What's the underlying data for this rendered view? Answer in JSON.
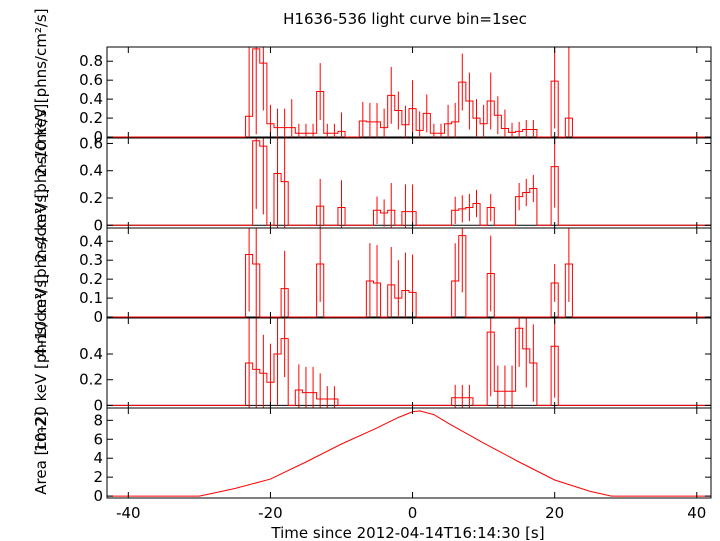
{
  "chart_data": {
    "type": "line",
    "title": "H1636-536 light curve bin=1sec",
    "xlabel": "Time since 2012-04-14T16:14:30 [s]",
    "xlim": [
      -43,
      42
    ],
    "xticks": [
      -40,
      -20,
      0,
      20,
      40
    ],
    "series_color": "#ff0000",
    "panels": [
      {
        "name": "2-10 keV",
        "ylabel": "2–10 keV [phns/cm²/s]",
        "ylim": [
          -0.01,
          0.95
        ],
        "yticks": [
          0,
          0.2,
          0.4,
          0.6,
          0.8
        ],
        "yticklabels": [
          "0",
          "0.2",
          "0.4",
          "0.6",
          "0.8"
        ],
        "bins": [
          {
            "t": -23,
            "v": 0.22,
            "e": 0.9
          },
          {
            "t": -22,
            "v": 0.93,
            "e": 0.9
          },
          {
            "t": -21,
            "v": 0.78,
            "e": 0.5
          },
          {
            "t": -20,
            "v": 0.14,
            "e": 0.2
          },
          {
            "t": -19,
            "v": 0.1,
            "e": 0.2
          },
          {
            "t": -18,
            "v": 0.1,
            "e": 0.2
          },
          {
            "t": -17,
            "v": 0.1,
            "e": 0.3
          },
          {
            "t": -16,
            "v": 0.04,
            "e": 0.1
          },
          {
            "t": -15,
            "v": 0.04,
            "e": 0.1
          },
          {
            "t": -14,
            "v": 0.04,
            "e": 0.1
          },
          {
            "t": -13,
            "v": 0.48,
            "e": 0.3
          },
          {
            "t": -12,
            "v": 0.04,
            "e": 0.1
          },
          {
            "t": -11,
            "v": 0.04,
            "e": 0.1
          },
          {
            "t": -10,
            "v": 0.06,
            "e": 0.2
          },
          {
            "t": -9,
            "v": 0.0,
            "e": 0.0
          },
          {
            "t": -8,
            "v": 0.0,
            "e": 0.0
          },
          {
            "t": -7,
            "v": 0.17,
            "e": 0.2
          },
          {
            "t": -6,
            "v": 0.16,
            "e": 0.2
          },
          {
            "t": -5,
            "v": 0.16,
            "e": 0.2
          },
          {
            "t": -4,
            "v": 0.1,
            "e": 0.2
          },
          {
            "t": -3,
            "v": 0.44,
            "e": 0.3
          },
          {
            "t": -2,
            "v": 0.28,
            "e": 0.2
          },
          {
            "t": -1,
            "v": 0.13,
            "e": 0.2
          },
          {
            "t": 0,
            "v": 0.3,
            "e": 0.3
          },
          {
            "t": 1,
            "v": 0.07,
            "e": 0.2
          },
          {
            "t": 2,
            "v": 0.25,
            "e": 0.2
          },
          {
            "t": 3,
            "v": 0.04,
            "e": 0.1
          },
          {
            "t": 4,
            "v": 0.04,
            "e": 0.1
          },
          {
            "t": 5,
            "v": 0.14,
            "e": 0.2
          },
          {
            "t": 6,
            "v": 0.16,
            "e": 0.2
          },
          {
            "t": 7,
            "v": 0.58,
            "e": 0.3
          },
          {
            "t": 8,
            "v": 0.38,
            "e": 0.3
          },
          {
            "t": 9,
            "v": 0.2,
            "e": 0.2
          },
          {
            "t": 10,
            "v": 0.14,
            "e": 0.2
          },
          {
            "t": 11,
            "v": 0.38,
            "e": 0.3
          },
          {
            "t": 12,
            "v": 0.23,
            "e": 0.2
          },
          {
            "t": 13,
            "v": 0.09,
            "e": 0.2
          },
          {
            "t": 14,
            "v": 0.05,
            "e": 0.1
          },
          {
            "t": 15,
            "v": 0.06,
            "e": 0.1
          },
          {
            "t": 16,
            "v": 0.08,
            "e": 0.1
          },
          {
            "t": 17,
            "v": 0.08,
            "e": 0.1
          },
          {
            "t": 18,
            "v": 0.0,
            "e": 0.0
          },
          {
            "t": 19,
            "v": 0.0,
            "e": 0.0
          },
          {
            "t": 20,
            "v": 0.59,
            "e": 0.5
          },
          {
            "t": 21,
            "v": 0.0,
            "e": 0.0
          },
          {
            "t": 22,
            "v": 0.2,
            "e": 0.9
          }
        ]
      },
      {
        "name": "2-4 keV",
        "ylabel": "2–4 keV [phns/cm²/s]",
        "ylim": [
          -0.02,
          0.64
        ],
        "yticks": [
          0,
          0.2,
          0.4,
          0.6
        ],
        "yticklabels": [
          "0",
          "0.2",
          "0.4",
          "0.6"
        ],
        "bins": [
          {
            "t": -23,
            "v": 0.0,
            "e": 0.0
          },
          {
            "t": -22,
            "v": 0.62,
            "e": 0.5
          },
          {
            "t": -21,
            "v": 0.58,
            "e": 0.5
          },
          {
            "t": -20,
            "v": 0.0,
            "e": 0.0
          },
          {
            "t": -19,
            "v": 0.38,
            "e": 0.4
          },
          {
            "t": -18,
            "v": 0.32,
            "e": 0.4
          },
          {
            "t": -17,
            "v": 0.0,
            "e": 0.0
          },
          {
            "t": -16,
            "v": 0.0,
            "e": 0.0
          },
          {
            "t": -15,
            "v": 0.0,
            "e": 0.0
          },
          {
            "t": -14,
            "v": 0.0,
            "e": 0.0
          },
          {
            "t": -13,
            "v": 0.14,
            "e": 0.2
          },
          {
            "t": -12,
            "v": 0.0,
            "e": 0.0
          },
          {
            "t": -11,
            "v": 0.0,
            "e": 0.0
          },
          {
            "t": -10,
            "v": 0.13,
            "e": 0.2
          },
          {
            "t": -9,
            "v": 0.0,
            "e": 0.0
          },
          {
            "t": -8,
            "v": 0.0,
            "e": 0.0
          },
          {
            "t": -7,
            "v": 0.0,
            "e": 0.0
          },
          {
            "t": -6,
            "v": 0.0,
            "e": 0.0
          },
          {
            "t": -5,
            "v": 0.11,
            "e": 0.1
          },
          {
            "t": -4,
            "v": 0.09,
            "e": 0.1
          },
          {
            "t": -3,
            "v": 0.11,
            "e": 0.2
          },
          {
            "t": -2,
            "v": 0.0,
            "e": 0.0
          },
          {
            "t": -1,
            "v": 0.1,
            "e": 0.2
          },
          {
            "t": 0,
            "v": 0.1,
            "e": 0.2
          },
          {
            "t": 1,
            "v": 0.0,
            "e": 0.0
          },
          {
            "t": 2,
            "v": 0.0,
            "e": 0.0
          },
          {
            "t": 3,
            "v": 0.0,
            "e": 0.0
          },
          {
            "t": 4,
            "v": 0.0,
            "e": 0.0
          },
          {
            "t": 5,
            "v": 0.0,
            "e": 0.0
          },
          {
            "t": 6,
            "v": 0.11,
            "e": 0.1
          },
          {
            "t": 7,
            "v": 0.12,
            "e": 0.1
          },
          {
            "t": 8,
            "v": 0.13,
            "e": 0.1
          },
          {
            "t": 9,
            "v": 0.16,
            "e": 0.1
          },
          {
            "t": 10,
            "v": 0.0,
            "e": 0.0
          },
          {
            "t": 11,
            "v": 0.13,
            "e": 0.1
          },
          {
            "t": 12,
            "v": 0.0,
            "e": 0.0
          },
          {
            "t": 13,
            "v": 0.0,
            "e": 0.0
          },
          {
            "t": 14,
            "v": 0.0,
            "e": 0.0
          },
          {
            "t": 15,
            "v": 0.21,
            "e": 0.1
          },
          {
            "t": 16,
            "v": 0.24,
            "e": 0.1
          },
          {
            "t": 17,
            "v": 0.27,
            "e": 0.1
          },
          {
            "t": 18,
            "v": 0.0,
            "e": 0.0
          },
          {
            "t": 19,
            "v": 0.0,
            "e": 0.0
          },
          {
            "t": 20,
            "v": 0.43,
            "e": 0.3
          },
          {
            "t": 21,
            "v": 0.0,
            "e": 0.0
          },
          {
            "t": 22,
            "v": 0.0,
            "e": 0.0
          }
        ]
      },
      {
        "name": "4-10 keV",
        "ylabel": "4–10 keV [phns/cm²/s]",
        "ylim": [
          -0.005,
          0.47
        ],
        "yticks": [
          0,
          0.1,
          0.2,
          0.3,
          0.4
        ],
        "yticklabels": [
          "0",
          "0.1",
          "0.2",
          "0.3",
          "0.4"
        ],
        "bins": [
          {
            "t": -23,
            "v": 0.33,
            "e": 0.3
          },
          {
            "t": -22,
            "v": 0.28,
            "e": 0.3
          },
          {
            "t": -21,
            "v": 0.0,
            "e": 0.0
          },
          {
            "t": -20,
            "v": 0.0,
            "e": 0.0
          },
          {
            "t": -19,
            "v": 0.0,
            "e": 0.0
          },
          {
            "t": -18,
            "v": 0.15,
            "e": 0.2
          },
          {
            "t": -17,
            "v": 0.0,
            "e": 0.0
          },
          {
            "t": -16,
            "v": 0.0,
            "e": 0.0
          },
          {
            "t": -15,
            "v": 0.0,
            "e": 0.0
          },
          {
            "t": -14,
            "v": 0.0,
            "e": 0.0
          },
          {
            "t": -13,
            "v": 0.28,
            "e": 0.2
          },
          {
            "t": -12,
            "v": 0.0,
            "e": 0.0
          },
          {
            "t": -11,
            "v": 0.0,
            "e": 0.0
          },
          {
            "t": -10,
            "v": 0.0,
            "e": 0.0
          },
          {
            "t": -9,
            "v": 0.0,
            "e": 0.0
          },
          {
            "t": -8,
            "v": 0.0,
            "e": 0.0
          },
          {
            "t": -7,
            "v": 0.0,
            "e": 0.0
          },
          {
            "t": -6,
            "v": 0.19,
            "e": 0.2
          },
          {
            "t": -5,
            "v": 0.18,
            "e": 0.2
          },
          {
            "t": -4,
            "v": 0.0,
            "e": 0.0
          },
          {
            "t": -3,
            "v": 0.17,
            "e": 0.2
          },
          {
            "t": -2,
            "v": 0.1,
            "e": 0.2
          },
          {
            "t": -1,
            "v": 0.14,
            "e": 0.2
          },
          {
            "t": 0,
            "v": 0.13,
            "e": 0.2
          },
          {
            "t": 1,
            "v": 0.0,
            "e": 0.0
          },
          {
            "t": 2,
            "v": 0.0,
            "e": 0.0
          },
          {
            "t": 3,
            "v": 0.0,
            "e": 0.0
          },
          {
            "t": 4,
            "v": 0.0,
            "e": 0.0
          },
          {
            "t": 5,
            "v": 0.0,
            "e": 0.0
          },
          {
            "t": 6,
            "v": 0.19,
            "e": 0.2
          },
          {
            "t": 7,
            "v": 0.43,
            "e": 0.3
          },
          {
            "t": 8,
            "v": 0.0,
            "e": 0.0
          },
          {
            "t": 9,
            "v": 0.0,
            "e": 0.0
          },
          {
            "t": 10,
            "v": 0.0,
            "e": 0.0
          },
          {
            "t": 11,
            "v": 0.23,
            "e": 0.2
          },
          {
            "t": 12,
            "v": 0.0,
            "e": 0.0
          },
          {
            "t": 13,
            "v": 0.0,
            "e": 0.0
          },
          {
            "t": 14,
            "v": 0.0,
            "e": 0.0
          },
          {
            "t": 15,
            "v": 0.0,
            "e": 0.0
          },
          {
            "t": 16,
            "v": 0.0,
            "e": 0.0
          },
          {
            "t": 17,
            "v": 0.0,
            "e": 0.0
          },
          {
            "t": 18,
            "v": 0.0,
            "e": 0.0
          },
          {
            "t": 19,
            "v": 0.0,
            "e": 0.0
          },
          {
            "t": 20,
            "v": 0.18,
            "e": 0.1
          },
          {
            "t": 21,
            "v": 0.0,
            "e": 0.0
          },
          {
            "t": 22,
            "v": 0.28,
            "e": 0.2
          }
        ]
      },
      {
        "name": "10-20 keV",
        "ylabel": "10–20 keV [phns/cm²/s]",
        "ylim": [
          -0.02,
          0.68
        ],
        "yticks": [
          0,
          0.2,
          0.4
        ],
        "yticklabels": [
          "0",
          "0.2",
          "0.4"
        ],
        "bins": [
          {
            "t": -23,
            "v": 0.33,
            "e": 0.4
          },
          {
            "t": -22,
            "v": 0.28,
            "e": 0.4
          },
          {
            "t": -21,
            "v": 0.25,
            "e": 0.3
          },
          {
            "t": -20,
            "v": 0.18,
            "e": 0.3
          },
          {
            "t": -19,
            "v": 0.4,
            "e": 0.4
          },
          {
            "t": -18,
            "v": 0.52,
            "e": 0.3
          },
          {
            "t": -17,
            "v": 0.0,
            "e": 0.0
          },
          {
            "t": -16,
            "v": 0.12,
            "e": 0.2
          },
          {
            "t": -15,
            "v": 0.1,
            "e": 0.2
          },
          {
            "t": -14,
            "v": 0.1,
            "e": 0.2
          },
          {
            "t": -13,
            "v": 0.05,
            "e": 0.2
          },
          {
            "t": -12,
            "v": 0.05,
            "e": 0.1
          },
          {
            "t": -11,
            "v": 0.05,
            "e": 0.1
          },
          {
            "t": -10,
            "v": 0.0,
            "e": 0.0
          },
          {
            "t": -9,
            "v": 0.0,
            "e": 0.0
          },
          {
            "t": -8,
            "v": 0.0,
            "e": 0.0
          },
          {
            "t": -7,
            "v": 0.0,
            "e": 0.0
          },
          {
            "t": -6,
            "v": 0.0,
            "e": 0.0
          },
          {
            "t": -5,
            "v": 0.0,
            "e": 0.0
          },
          {
            "t": -4,
            "v": 0.0,
            "e": 0.0
          },
          {
            "t": -3,
            "v": 0.0,
            "e": 0.0
          },
          {
            "t": -2,
            "v": 0.0,
            "e": 0.0
          },
          {
            "t": -1,
            "v": 0.0,
            "e": 0.0
          },
          {
            "t": 0,
            "v": 0.0,
            "e": 0.0
          },
          {
            "t": 1,
            "v": 0.0,
            "e": 0.0
          },
          {
            "t": 2,
            "v": 0.0,
            "e": 0.0
          },
          {
            "t": 3,
            "v": 0.0,
            "e": 0.0
          },
          {
            "t": 4,
            "v": 0.0,
            "e": 0.0
          },
          {
            "t": 5,
            "v": 0.0,
            "e": 0.0
          },
          {
            "t": 6,
            "v": 0.06,
            "e": 0.1
          },
          {
            "t": 7,
            "v": 0.06,
            "e": 0.1
          },
          {
            "t": 8,
            "v": 0.06,
            "e": 0.1
          },
          {
            "t": 9,
            "v": 0.0,
            "e": 0.0
          },
          {
            "t": 10,
            "v": 0.0,
            "e": 0.0
          },
          {
            "t": 11,
            "v": 0.57,
            "e": 0.5
          },
          {
            "t": 12,
            "v": 0.11,
            "e": 0.2
          },
          {
            "t": 13,
            "v": 0.11,
            "e": 0.2
          },
          {
            "t": 14,
            "v": 0.11,
            "e": 0.2
          },
          {
            "t": 15,
            "v": 0.6,
            "e": 0.3
          },
          {
            "t": 16,
            "v": 0.44,
            "e": 0.3
          },
          {
            "t": 17,
            "v": 0.33,
            "e": 0.3
          },
          {
            "t": 18,
            "v": 0.0,
            "e": 0.0
          },
          {
            "t": 19,
            "v": 0.0,
            "e": 0.0
          },
          {
            "t": 20,
            "v": 0.46,
            "e": 0.4
          },
          {
            "t": 21,
            "v": 0.0,
            "e": 0.0
          },
          {
            "t": 22,
            "v": 0.0,
            "e": 0.0
          }
        ]
      },
      {
        "name": "Area",
        "ylabel": "Area [cm2]",
        "ylim": [
          -0.2,
          9.3
        ],
        "yticks": [
          0,
          2,
          4,
          6,
          8
        ],
        "yticklabels": [
          "0",
          "2",
          "4",
          "6",
          "8"
        ],
        "curve": [
          [
            -43,
            0.0
          ],
          [
            -30,
            0.0
          ],
          [
            -25,
            0.8
          ],
          [
            -20,
            1.8
          ],
          [
            -15,
            3.6
          ],
          [
            -10,
            5.5
          ],
          [
            -5,
            7.2
          ],
          [
            -2,
            8.3
          ],
          [
            0,
            8.9
          ],
          [
            1,
            9.0
          ],
          [
            3,
            8.6
          ],
          [
            5,
            7.7
          ],
          [
            10,
            5.6
          ],
          [
            15,
            3.6
          ],
          [
            20,
            1.7
          ],
          [
            25,
            0.5
          ],
          [
            28,
            0.0
          ],
          [
            42,
            0.0
          ]
        ]
      }
    ]
  }
}
